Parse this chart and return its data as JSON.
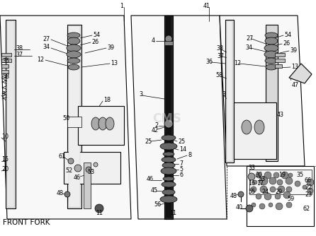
{
  "title": "FRONT FORK",
  "bg_color": "#ffffff",
  "line_color": "#000000",
  "text_color": "#000000",
  "watermark": "CMS",
  "fig_width": 4.46,
  "fig_height": 3.34,
  "dpi": 100
}
